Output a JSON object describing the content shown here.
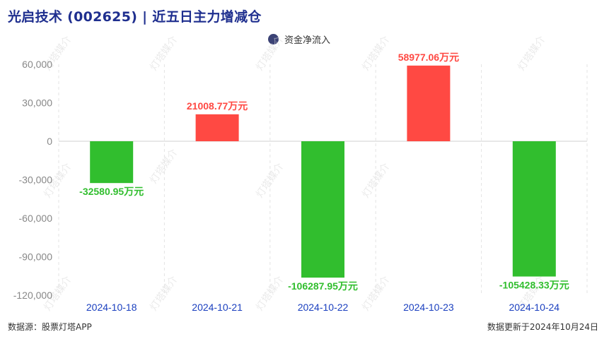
{
  "header": {
    "title": "光启技术 (002625) | 近五日主力增减仓"
  },
  "footer": {
    "source": "数据源：股票灯塔APP",
    "updated": "数据更新于2024年10月24日"
  },
  "watermark": "灯塔媒介",
  "colors": {
    "positive": "#ff4943",
    "negative": "#31be2e",
    "title": "#1f2f8f",
    "xlabel": "#1a3fbf",
    "legend": "#3b4275"
  },
  "chart_data": {
    "type": "bar",
    "categories": [
      "2024-10-18",
      "2024-10-21",
      "2024-10-22",
      "2024-10-23",
      "2024-10-24"
    ],
    "series": [
      {
        "name": "资金净流入",
        "values": [
          -32580.95,
          21008.77,
          -106287.95,
          58977.06,
          -105428.33
        ]
      }
    ],
    "data_labels": [
      "-32580.95万元",
      "21008.77万元",
      "-106287.95万元",
      "58977.06万元",
      "-105428.33万元"
    ],
    "ylim": [
      -120000,
      60000
    ],
    "yticks": [
      60000,
      30000,
      0,
      -30000,
      -60000,
      -90000,
      -120000
    ],
    "ytick_labels": [
      "60,000",
      "30,000",
      "0",
      "-30,000",
      "-60,000",
      "-90,000",
      "-120,000"
    ],
    "legend_position": "top-center",
    "grid": true
  }
}
